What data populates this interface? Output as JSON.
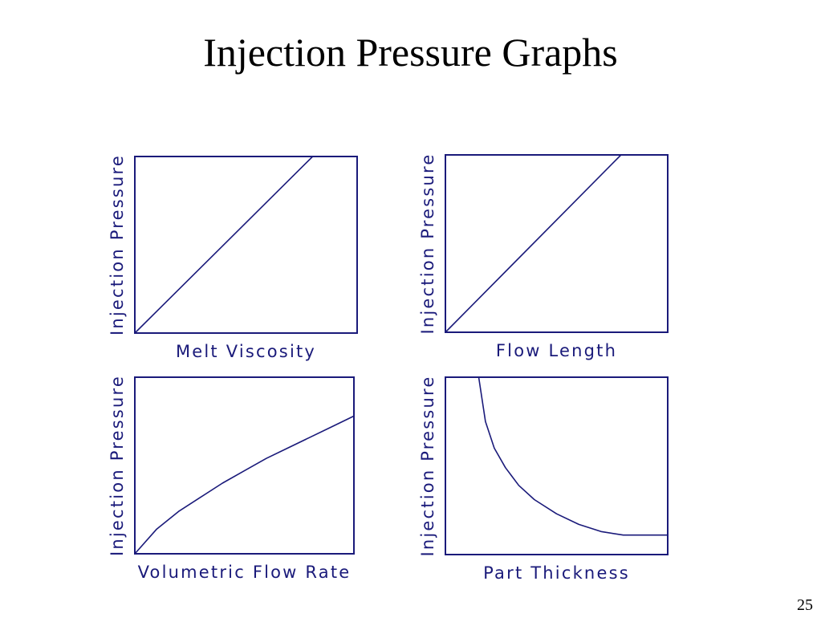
{
  "slide": {
    "title": "Injection Pressure Graphs",
    "page_number": "25"
  },
  "colors": {
    "ink": "#1a1a7a",
    "background": "#ffffff"
  },
  "chart_data": [
    {
      "type": "line",
      "xlabel": "Melt Viscosity",
      "ylabel": "Injection Pressure",
      "title": "",
      "grid": false,
      "xlim": [
        0,
        1
      ],
      "ylim": [
        0,
        1
      ],
      "series": [
        {
          "x": [
            0,
            0.8
          ],
          "y": [
            0,
            1
          ]
        }
      ]
    },
    {
      "type": "line",
      "xlabel": "Flow Length",
      "ylabel": "Injection Pressure",
      "title": "",
      "grid": false,
      "xlim": [
        0,
        1
      ],
      "ylim": [
        0,
        1
      ],
      "series": [
        {
          "x": [
            0,
            0.79
          ],
          "y": [
            0,
            1
          ]
        }
      ]
    },
    {
      "type": "line",
      "xlabel": "Volumetric Flow Rate",
      "ylabel": "Injection Pressure",
      "title": "",
      "grid": false,
      "xlim": [
        0,
        1
      ],
      "ylim": [
        0,
        1
      ],
      "series": [
        {
          "x": [
            0,
            0.1,
            0.2,
            0.3,
            0.4,
            0.5,
            0.6,
            0.7,
            0.8,
            0.9,
            1.0
          ],
          "y": [
            0,
            0.14,
            0.24,
            0.32,
            0.4,
            0.47,
            0.54,
            0.6,
            0.66,
            0.72,
            0.78
          ]
        }
      ]
    },
    {
      "type": "line",
      "xlabel": "Part Thickness",
      "ylabel": "Injection Pressure",
      "title": "",
      "grid": false,
      "xlim": [
        0,
        1
      ],
      "ylim": [
        0,
        1
      ],
      "series": [
        {
          "x": [
            0.15,
            0.18,
            0.22,
            0.27,
            0.33,
            0.4,
            0.5,
            0.6,
            0.7,
            0.8,
            0.9,
            1.0
          ],
          "y": [
            1.0,
            0.75,
            0.6,
            0.49,
            0.39,
            0.31,
            0.23,
            0.17,
            0.13,
            0.11,
            0.11,
            0.11
          ]
        }
      ]
    }
  ]
}
